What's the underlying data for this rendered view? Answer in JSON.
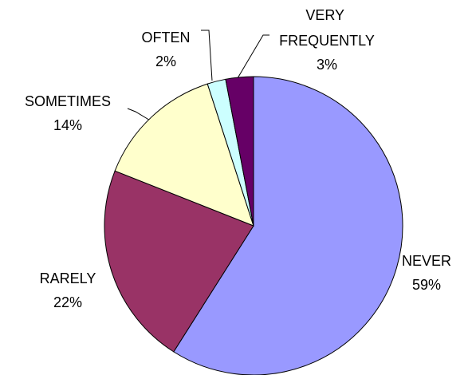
{
  "chart_data": {
    "type": "pie",
    "categories": [
      "NEVER",
      "RARELY",
      "SOMETIMES",
      "OFTEN",
      "VERY FREQUENTLY"
    ],
    "values": [
      59,
      22,
      14,
      2,
      3
    ],
    "value_labels": [
      "59%",
      "22%",
      "14%",
      "2%",
      "3%"
    ],
    "colors": [
      "#9999ff",
      "#993366",
      "#ffffcc",
      "#ccffff",
      "#660066"
    ]
  }
}
